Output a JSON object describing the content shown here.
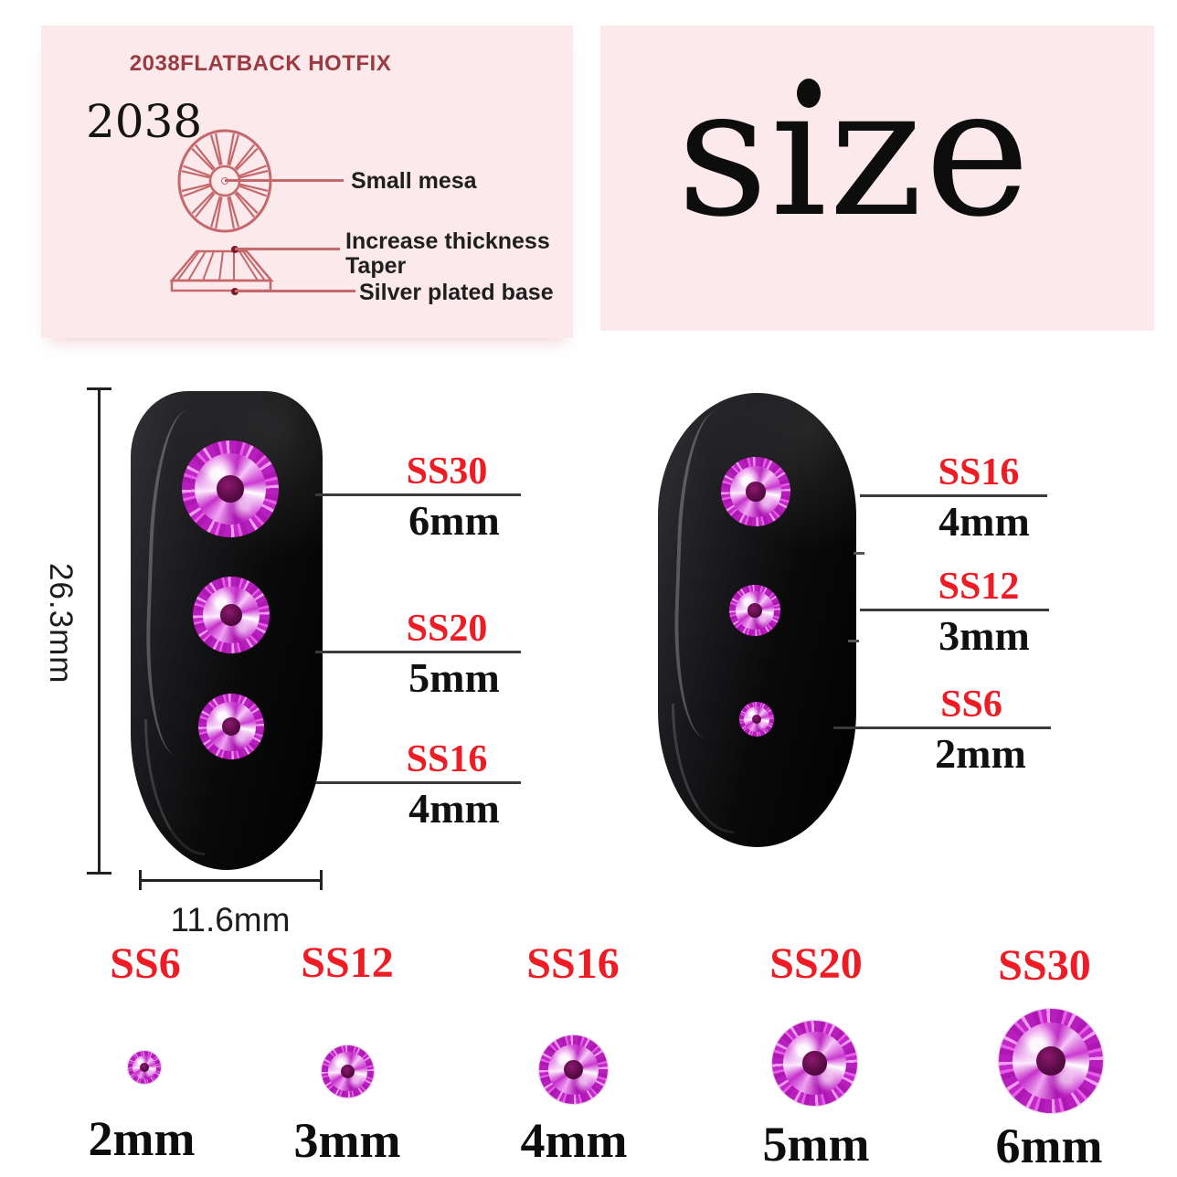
{
  "spec_panel": {
    "title": "2038FLATBACK HOTFIX",
    "model": "2038",
    "callouts": {
      "small_mesa": "Small mesa",
      "increase_thickness": "Increase thickness",
      "taper": "Taper",
      "silver_plated_base": "Silver plated base"
    }
  },
  "size_panel": {
    "word": "sıze"
  },
  "left_nail": {
    "height_label": "26.3mm",
    "width_label": "11.6mm",
    "callouts": [
      {
        "ss": "SS30",
        "mm": "6mm"
      },
      {
        "ss": "SS20",
        "mm": "5mm"
      },
      {
        "ss": "SS16",
        "mm": "4mm"
      }
    ]
  },
  "right_nail": {
    "callouts": [
      {
        "ss": "SS16",
        "mm": "4mm"
      },
      {
        "ss": "SS12",
        "mm": "3mm"
      },
      {
        "ss": "SS6",
        "mm": "2mm"
      }
    ]
  },
  "legend": [
    {
      "ss": "SS6",
      "mm": "2mm"
    },
    {
      "ss": "SS12",
      "mm": "3mm"
    },
    {
      "ss": "SS16",
      "mm": "4mm"
    },
    {
      "ss": "SS20",
      "mm": "5mm"
    },
    {
      "ss": "SS30",
      "mm": "6mm"
    }
  ],
  "colors": {
    "accent_red": "#ee1c24",
    "panel_pink": "#fce9eb",
    "diagram_stroke": "#c4686c",
    "title_maroon": "#9c3a42",
    "stone_magenta": "#c228c6",
    "stone_center": "#5a0b46"
  }
}
